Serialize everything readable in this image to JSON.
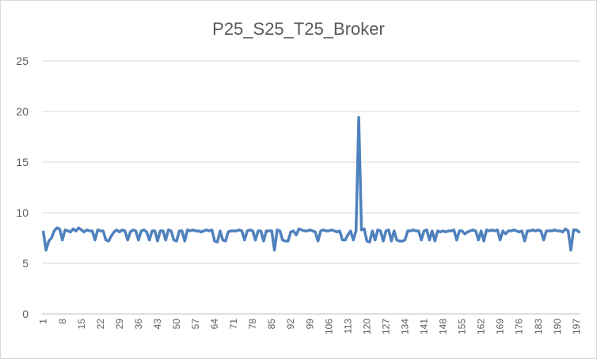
{
  "chart_data": {
    "type": "line",
    "title": "P25_S25_T25_Broker",
    "xlabel": "",
    "ylabel": "",
    "ylim": [
      0,
      25
    ],
    "yticks": [
      0,
      5,
      10,
      15,
      20,
      25
    ],
    "x_tick_labels": [
      "1",
      "8",
      "15",
      "22",
      "29",
      "36",
      "43",
      "50",
      "57",
      "64",
      "71",
      "78",
      "85",
      "92",
      "99",
      "106",
      "113",
      "120",
      "127",
      "134",
      "141",
      "148",
      "155",
      "162",
      "169",
      "176",
      "183",
      "190",
      "197"
    ],
    "grid": true,
    "legend": "none",
    "colors": {
      "series": "#4f81bd",
      "grid": "#d9d9d9",
      "text": "#595959"
    },
    "series": [
      {
        "x_start": 1,
        "values": [
          8.1,
          6.3,
          7.2,
          7.5,
          8.2,
          8.5,
          8.4,
          7.3,
          8.3,
          8.2,
          8.1,
          8.4,
          8.2,
          8.5,
          8.3,
          8.1,
          8.3,
          8.2,
          8.2,
          7.3,
          8.3,
          8.2,
          8.2,
          7.3,
          7.2,
          7.7,
          8.1,
          8.3,
          8.1,
          8.3,
          8.2,
          7.3,
          8.1,
          8.3,
          8.2,
          7.3,
          8.2,
          8.3,
          8.1,
          7.3,
          8.2,
          8.2,
          7.2,
          8.2,
          8.2,
          7.3,
          8.3,
          8.2,
          7.3,
          7.2,
          8.2,
          8.2,
          7.2,
          8.3,
          8.2,
          8.3,
          8.2,
          8.2,
          8.1,
          8.2,
          8.3,
          8.2,
          8.3,
          7.2,
          7.1,
          8.2,
          7.3,
          7.2,
          8.1,
          8.2,
          8.2,
          8.2,
          8.3,
          8.2,
          7.3,
          8.2,
          8.3,
          8.2,
          7.3,
          8.2,
          8.2,
          7.2,
          8.2,
          8.2,
          8.2,
          6.3,
          8.3,
          8.2,
          7.3,
          7.2,
          7.2,
          8.1,
          8.2,
          7.8,
          8.4,
          8.3,
          8.2,
          8.2,
          8.3,
          8.2,
          8.1,
          7.2,
          8.2,
          8.3,
          8.2,
          8.2,
          8.3,
          8.2,
          8.1,
          8.2,
          7.3,
          7.3,
          7.8,
          8.2,
          7.3,
          8.2,
          19.4,
          8.3,
          8.4,
          7.2,
          7.1,
          8.2,
          7.3,
          8.3,
          8.2,
          7.2,
          8.2,
          8.3,
          7.2,
          8.2,
          7.3,
          7.2,
          7.2,
          7.3,
          8.2,
          8.2,
          8.3,
          8.2,
          8.2,
          7.3,
          8.2,
          8.3,
          7.3,
          8.2,
          7.2,
          8.2,
          8.1,
          8.2,
          8.1,
          8.2,
          8.2,
          8.3,
          7.3,
          8.2,
          8.2,
          7.9,
          8.1,
          8.2,
          8.3,
          8.2,
          7.3,
          8.2,
          7.2,
          8.3,
          8.2,
          8.3,
          8.2,
          8.3,
          7.3,
          8.2,
          7.9,
          8.2,
          8.2,
          8.3,
          8.2,
          8.1,
          8.2,
          7.2,
          8.2,
          8.2,
          8.3,
          8.2,
          8.3,
          8.2,
          7.3,
          8.2,
          8.2,
          8.2,
          8.3,
          8.2,
          8.2,
          8.1,
          8.4,
          8.2,
          6.3,
          8.3,
          8.3,
          8.1
        ]
      }
    ]
  }
}
